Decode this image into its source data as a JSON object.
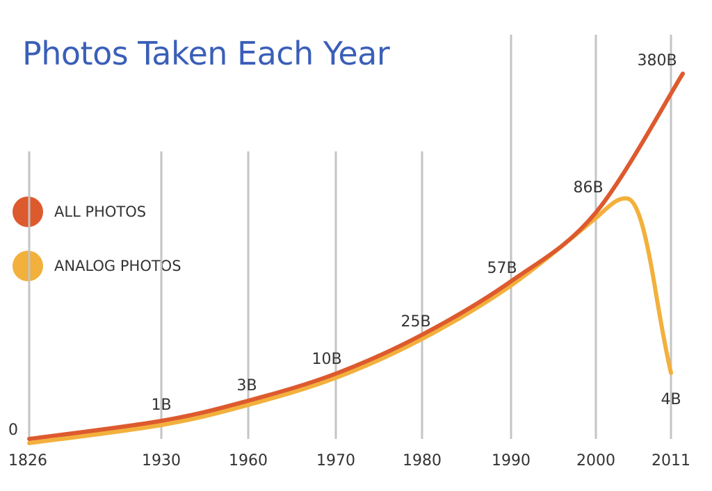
{
  "title": "Photos Taken Each Year",
  "chart_data": {
    "type": "line",
    "title": "Photos Taken Each Year",
    "xlabel": "",
    "ylabel": "",
    "x_ticks": [
      "1826",
      "1930",
      "1960",
      "1970",
      "1980",
      "1990",
      "2000",
      "2011"
    ],
    "y_ticks": [
      "0"
    ],
    "grid": "vertical",
    "legend_position": "left",
    "series": [
      {
        "name": "ALL PHOTOS",
        "color": "#dd5a2e",
        "points": [
          {
            "x": "1826",
            "y": 0
          },
          {
            "x": "1930",
            "y": 1
          },
          {
            "x": "1960",
            "y": 3
          },
          {
            "x": "1970",
            "y": 10
          },
          {
            "x": "1980",
            "y": 25
          },
          {
            "x": "1990",
            "y": 57
          },
          {
            "x": "2000",
            "y": 86
          },
          {
            "x": "2011",
            "y": 380
          }
        ]
      },
      {
        "name": "ANALOG PHOTOS",
        "color": "#f2b03c",
        "points": [
          {
            "x": "1826",
            "y": 0
          },
          {
            "x": "1930",
            "y": 1
          },
          {
            "x": "1960",
            "y": 3
          },
          {
            "x": "1970",
            "y": 10
          },
          {
            "x": "1980",
            "y": 25
          },
          {
            "x": "1990",
            "y": 57
          },
          {
            "x": "2000",
            "y": 86
          },
          {
            "x": "2011",
            "y": 4
          }
        ]
      }
    ],
    "data_labels": [
      {
        "x": "1930",
        "text": "1B"
      },
      {
        "x": "1960",
        "text": "3B"
      },
      {
        "x": "1970",
        "text": "10B"
      },
      {
        "x": "1980",
        "text": "25B"
      },
      {
        "x": "1990",
        "text": "57B"
      },
      {
        "x": "2000",
        "text": "86B"
      },
      {
        "x": "2011",
        "text": "380B"
      },
      {
        "x": "2011",
        "text": "4B"
      }
    ]
  }
}
